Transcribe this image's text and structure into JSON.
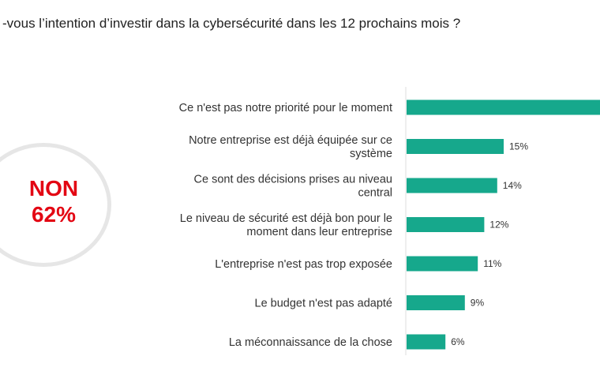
{
  "title": "-vous l’intention d’investir dans la cybersécurité dans les 12 prochains mois ?",
  "badge": {
    "line1": "NON",
    "line2": "62%"
  },
  "colors": {
    "bar": "#16a88c",
    "badge_text": "#e30613",
    "ring": "#e6e6e6",
    "axis": "#dddddd"
  },
  "chart_data": {
    "type": "bar",
    "orientation": "horizontal",
    "categories": [
      "Ce n'est pas notre priorité pour le moment",
      "Notre entreprise est déjà équipée sur ce système",
      "Ce sont des décisions prises au niveau central",
      "Le niveau de sécurité est déjà bon pour le moment dans leur entreprise",
      "L'entreprise n'est pas trop exposée",
      "Le budget n'est pas adapté",
      "La méconnaissance de la chose"
    ],
    "category_lines": [
      [
        "Ce n'est pas notre priorité pour le moment"
      ],
      [
        "Notre entreprise est déjà équipée sur ce",
        "système"
      ],
      [
        "Ce sont des décisions prises au niveau",
        "central"
      ],
      [
        "Le niveau de sécurité est déjà bon pour le",
        "moment dans leur entreprise"
      ],
      [
        "L'entreprise n'est pas trop exposée"
      ],
      [
        "Le budget n'est pas adapté"
      ],
      [
        "La méconnaissance de la chose"
      ]
    ],
    "values": [
      null,
      15,
      14,
      12,
      11,
      9,
      6
    ],
    "value_labels": [
      "",
      "15%",
      "14%",
      "12%",
      "11%",
      "9%",
      "6%"
    ],
    "unit": "%"
  }
}
